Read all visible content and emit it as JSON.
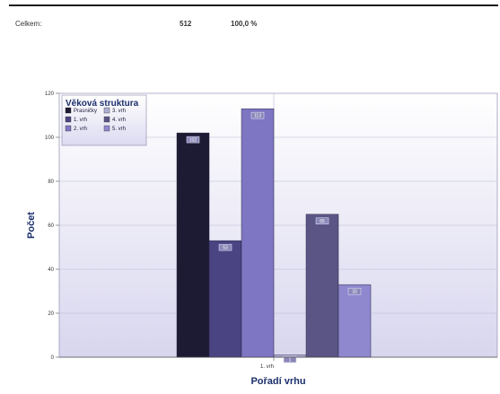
{
  "summary": {
    "label": "Celkem:",
    "count": "512",
    "percent": "100,0 %"
  },
  "chart_data": {
    "type": "bar",
    "title": "",
    "categories": [
      "1. vrh"
    ],
    "xlabel": "Pořadí vrhu",
    "ylabel": "Počet",
    "ylim": [
      0,
      120
    ],
    "yticks": [
      0,
      20,
      40,
      60,
      80,
      100,
      120
    ],
    "grid": true,
    "legend": {
      "title": "Věková struktura",
      "placement": "top-left"
    },
    "series": [
      {
        "name": "Prasničky",
        "values": [
          102
        ],
        "color": "#1d1a33"
      },
      {
        "name": "1. vrh",
        "values": [
          53
        ],
        "color": "#4a4483"
      },
      {
        "name": "2. vrh",
        "values": [
          113
        ],
        "color": "#7e76c2"
      },
      {
        "name": "3. vrh",
        "values": [
          1
        ],
        "color": "#b0aed6"
      },
      {
        "name": "4. vrh",
        "values": [
          65
        ],
        "color": "#5b5586"
      },
      {
        "name": "5. vrh",
        "values": [
          33
        ],
        "color": "#8f88cf"
      }
    ]
  }
}
